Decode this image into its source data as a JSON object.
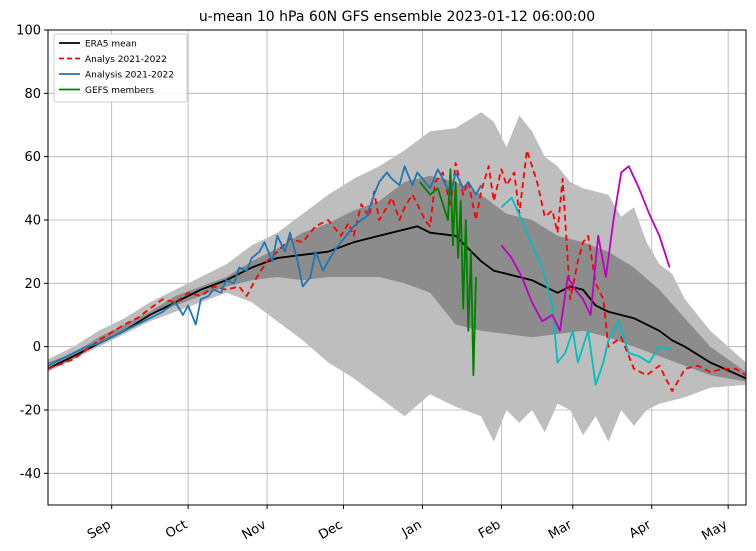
{
  "chart_data": {
    "type": "line",
    "title": "u-mean 10 hPa 60N GFS ensemble 2023-01-12 06:00:00",
    "xlabel": "",
    "ylabel": "",
    "ylim": [
      -50,
      100
    ],
    "yticks": [
      -40,
      -20,
      0,
      20,
      40,
      60,
      80,
      100
    ],
    "xlim_days": [
      0,
      274
    ],
    "xticks": [
      {
        "label": "Sep",
        "day": 25
      },
      {
        "label": "Oct",
        "day": 55
      },
      {
        "label": "Nov",
        "day": 86
      },
      {
        "label": "Dec",
        "day": 116
      },
      {
        "label": "Jan",
        "day": 147
      },
      {
        "label": "Feb",
        "day": 178
      },
      {
        "label": "Mar",
        "day": 206
      },
      {
        "label": "Apr",
        "day": 237
      },
      {
        "label": "May",
        "day": 267
      }
    ],
    "grid": true,
    "legend_position": "top-left",
    "legend": [
      {
        "label": "ERA5 mean",
        "color": "#000000",
        "style": "solid"
      },
      {
        "label": "Analys 2021-2022",
        "color": "#ff0000",
        "style": "dashed"
      },
      {
        "label": "Analysis 2021-2022",
        "color": "#1f77b4",
        "style": "solid"
      },
      {
        "label": "GEFS members",
        "color": "#008000",
        "style": "solid"
      }
    ],
    "bands": {
      "outer": {
        "color": "#bebebe",
        "x": [
          0,
          10,
          20,
          30,
          40,
          50,
          60,
          70,
          80,
          90,
          100,
          110,
          120,
          130,
          140,
          150,
          160,
          170,
          175,
          180,
          185,
          190,
          195,
          200,
          205,
          210,
          215,
          220,
          225,
          230,
          235,
          240,
          245,
          250,
          260,
          274
        ],
        "upper": [
          -4,
          0,
          5,
          9,
          14,
          18,
          22,
          26,
          32,
          36,
          42,
          48,
          53,
          57,
          62,
          68,
          69,
          74,
          71,
          63,
          73,
          68,
          60,
          57,
          52,
          50,
          49,
          48,
          41,
          44,
          33,
          26,
          23,
          15,
          5,
          -5
        ],
        "lower": [
          -8,
          -4,
          0,
          4,
          8,
          11,
          14,
          17,
          14,
          8,
          2,
          -5,
          -10,
          -16,
          -22,
          -15,
          -19,
          -22,
          -30,
          -20,
          -24,
          -20,
          -27,
          -18,
          -20,
          -28,
          -22,
          -30,
          -20,
          -25,
          -20,
          -18,
          -17,
          -16,
          -13,
          -12
        ]
      },
      "inner": {
        "color": "#8c8c8c",
        "x": [
          0,
          10,
          20,
          30,
          40,
          50,
          60,
          70,
          80,
          90,
          100,
          110,
          120,
          130,
          140,
          150,
          160,
          170,
          180,
          190,
          200,
          210,
          220,
          230,
          240,
          250,
          260,
          274
        ],
        "upper": [
          -5,
          -2,
          3,
          7,
          11,
          16,
          19,
          22,
          27,
          31,
          36,
          39,
          43,
          46,
          52,
          54,
          52,
          48,
          42,
          40,
          35,
          33,
          30,
          25,
          18,
          9,
          0,
          -8
        ],
        "lower": [
          -7,
          -4,
          1,
          5,
          10,
          13,
          16,
          19,
          21,
          22,
          21,
          22,
          22,
          22,
          20,
          17,
          7,
          5,
          4,
          3,
          4,
          5,
          3,
          0,
          -3,
          -6,
          -9,
          -11
        ]
      }
    },
    "series": [
      {
        "name": "ERA5 mean",
        "color": "#000000",
        "dash": "",
        "width": 1.8,
        "x": [
          0,
          10,
          20,
          30,
          40,
          50,
          60,
          70,
          80,
          90,
          100,
          110,
          120,
          130,
          140,
          145,
          150,
          160,
          165,
          170,
          175,
          180,
          190,
          200,
          205,
          210,
          215,
          220,
          225,
          230,
          240,
          245,
          250,
          260,
          274
        ],
        "y": [
          -7,
          -3,
          1,
          5,
          10,
          14,
          18,
          21,
          25,
          28,
          29,
          30,
          33,
          35,
          37,
          38,
          36,
          35,
          31,
          27,
          24,
          23,
          21,
          17,
          19,
          18,
          13,
          11,
          10,
          9,
          5,
          2,
          0,
          -5,
          -10
        ]
      },
      {
        "name": "Analys 2021-2022",
        "color": "#ff0000",
        "dash": "6,4",
        "width": 1.8,
        "x": [
          0,
          10,
          20,
          30,
          35,
          40,
          45,
          50,
          55,
          60,
          65,
          70,
          75,
          78,
          82,
          86,
          90,
          95,
          100,
          105,
          110,
          115,
          118,
          120,
          123,
          126,
          128,
          130,
          133,
          135,
          138,
          140,
          143,
          145,
          148,
          150,
          152,
          155,
          158,
          160,
          163,
          165,
          168,
          170,
          173,
          175,
          178,
          180,
          183,
          185,
          188,
          190,
          192,
          195,
          198,
          200,
          202,
          205,
          208,
          210,
          212,
          215,
          218,
          220,
          225,
          230,
          235,
          240,
          245,
          248,
          250,
          255,
          260,
          265,
          270,
          274
        ],
        "y": [
          -7,
          -4,
          2,
          7,
          9,
          12,
          15,
          14,
          17,
          16,
          19,
          18,
          19,
          16,
          22,
          27,
          30,
          34,
          33,
          38,
          40,
          35,
          39,
          35,
          45,
          41,
          49,
          40,
          44,
          47,
          40,
          44,
          48,
          45,
          40,
          38,
          52,
          55,
          44,
          58,
          48,
          52,
          40,
          49,
          57,
          46,
          56,
          51,
          55,
          42,
          62,
          57,
          52,
          41,
          43,
          36,
          53,
          15,
          27,
          33,
          35,
          20,
          15,
          0,
          3,
          -7,
          -9,
          -6,
          -14,
          -10,
          -7,
          -6,
          -8,
          -7,
          -7,
          -9
        ]
      },
      {
        "name": "Analysis 2021-2022",
        "color": "#1f77b4",
        "dash": "",
        "width": 1.8,
        "x": [
          0,
          5,
          10,
          15,
          20,
          25,
          30,
          35,
          40,
          45,
          50,
          53,
          55,
          58,
          60,
          63,
          65,
          68,
          70,
          73,
          75,
          78,
          80,
          83,
          85,
          88,
          90,
          93,
          95,
          98,
          100,
          103,
          105,
          108,
          110,
          113,
          115,
          118,
          120,
          123,
          125,
          128,
          130,
          133,
          135,
          138,
          140,
          143,
          145,
          148,
          150,
          153,
          155,
          158,
          160,
          163,
          165,
          168,
          170
        ],
        "y": [
          -6,
          -4,
          -2,
          0,
          1,
          3,
          5,
          7,
          9,
          11,
          14,
          10,
          13,
          7,
          15,
          16,
          18,
          17,
          21,
          20,
          25,
          24,
          28,
          30,
          33,
          27,
          35,
          30,
          36,
          27,
          19,
          22,
          30,
          24,
          27,
          31,
          33,
          36,
          38,
          40,
          41,
          48,
          52,
          55,
          53,
          51,
          57,
          51,
          55,
          52,
          50,
          56,
          53,
          48,
          55,
          50,
          52,
          48,
          51
        ]
      },
      {
        "name": "",
        "color": "#00bfbf",
        "dash": "",
        "width": 1.8,
        "x": [
          178,
          182,
          186,
          190,
          194,
          198,
          200,
          203,
          206,
          208,
          212,
          215,
          218,
          220,
          224,
          228,
          232,
          236,
          240,
          245
        ],
        "y": [
          44,
          47,
          40,
          32,
          25,
          13,
          -5,
          -2,
          5,
          -5,
          5,
          -12,
          -5,
          2,
          8,
          -2,
          -3,
          -5,
          0,
          -1
        ]
      },
      {
        "name": "",
        "color": "#bf00bf",
        "dash": "",
        "width": 1.8,
        "x": [
          178,
          182,
          186,
          190,
          194,
          198,
          201,
          204,
          207,
          210,
          213,
          216,
          219,
          222,
          225,
          228,
          232,
          236,
          240,
          244
        ],
        "y": [
          32,
          28,
          22,
          14,
          8,
          10,
          5,
          22,
          18,
          15,
          10,
          35,
          22,
          40,
          55,
          57,
          50,
          42,
          35,
          25
        ]
      },
      {
        "name": "GEFS members",
        "color": "#008000",
        "dash": "",
        "width": 1.8,
        "x": [
          146,
          150,
          153,
          155,
          157,
          158,
          159,
          160,
          161,
          162,
          163,
          164,
          165,
          166,
          167,
          168
        ],
        "y": [
          52,
          48,
          50,
          45,
          40,
          56,
          32,
          52,
          28,
          46,
          12,
          40,
          5,
          30,
          -9,
          22
        ]
      }
    ]
  }
}
